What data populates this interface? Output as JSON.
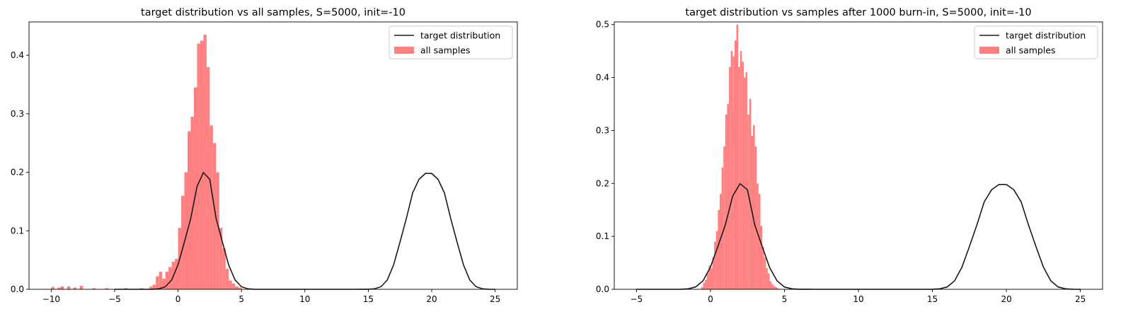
{
  "chart_data": [
    {
      "type": "histogram+line",
      "title": "target distribution vs all samples, S=5000, init=-10",
      "xlabel": "",
      "ylabel": "",
      "xlim": [
        -11.75,
        26.75
      ],
      "ylim": [
        0,
        0.457
      ],
      "xticks": [
        -10,
        -5,
        0,
        5,
        10,
        15,
        20,
        25
      ],
      "yticks": [
        0.0,
        0.1,
        0.2,
        0.3,
        0.4
      ],
      "legend": {
        "position": "top-right",
        "entries": [
          {
            "label": "target distribution",
            "kind": "line",
            "color": "#1a1a1a"
          },
          {
            "label": "all samples",
            "kind": "patch",
            "color": "#ff8080"
          }
        ]
      },
      "series": [
        {
          "name": "target distribution",
          "kind": "line",
          "color": "#1a1a1a",
          "x": [
            -5,
            -4.5,
            -4,
            -3.5,
            -3,
            -2.5,
            -2,
            -1.5,
            -1,
            -0.5,
            0,
            0.5,
            1,
            1.5,
            2,
            2.5,
            3,
            3.5,
            4,
            4.5,
            5,
            5.5,
            6,
            7,
            8,
            10,
            12,
            14,
            15,
            15.5,
            16,
            16.5,
            17,
            17.5,
            18,
            18.5,
            19,
            19.5,
            20,
            20.5,
            21,
            21.5,
            22,
            22.5,
            23,
            23.5,
            24,
            24.5,
            25
          ],
          "y": [
            0,
            0,
            0,
            0,
            0,
            0,
            0.0001,
            0.0009,
            0.0044,
            0.016,
            0.042,
            0.0807,
            0.121,
            0.176,
            0.1995,
            0.188,
            0.121,
            0.0807,
            0.041,
            0.016,
            0.0044,
            0.0009,
            0.0001,
            0,
            0,
            0,
            0,
            0,
            0.0001,
            0.0009,
            0.0044,
            0.016,
            0.042,
            0.0807,
            0.121,
            0.165,
            0.188,
            0.198,
            0.198,
            0.188,
            0.165,
            0.121,
            0.0807,
            0.042,
            0.016,
            0.0044,
            0.0009,
            0.0001,
            0
          ]
        },
        {
          "name": "all samples",
          "kind": "histogram",
          "color": "#ff8080",
          "bin_width": 0.25,
          "bin_starts": [
            -10.0,
            -9.5,
            -9.25,
            -8.75,
            -8.25,
            -7.75,
            -6.75,
            -5.75,
            -4.25,
            -3.0,
            -2.25,
            -2.0,
            -1.75,
            -1.5,
            -1.25,
            -1.0,
            -0.75,
            -0.5,
            -0.25,
            0,
            0.25,
            0.5,
            0.75,
            1.0,
            1.25,
            1.5,
            1.75,
            2.0,
            2.25,
            2.5,
            2.75,
            3.0,
            3.25,
            3.5,
            3.75,
            4.0,
            4.25,
            4.5,
            4.75
          ],
          "values": [
            0.004,
            0.003,
            0.005,
            0.005,
            0.003,
            0.006,
            0.002,
            0.002,
            0.002,
            0.002,
            0.005,
            0.008,
            0.022,
            0.03,
            0.018,
            0.03,
            0.038,
            0.047,
            0.052,
            0.105,
            0.16,
            0.2,
            0.27,
            0.295,
            0.345,
            0.42,
            0.425,
            0.435,
            0.38,
            0.28,
            0.25,
            0.2,
            0.105,
            0.07,
            0.035,
            0.015,
            0.01,
            0.005,
            0.003
          ]
        }
      ]
    },
    {
      "type": "histogram+line",
      "title": "target distribution vs samples after 1000 burn-in, S=5000, init=-10",
      "xlabel": "",
      "ylabel": "",
      "xlim": [
        -6.5,
        26.5
      ],
      "ylim": [
        0,
        0.505
      ],
      "xticks": [
        -5,
        0,
        5,
        10,
        15,
        20,
        25
      ],
      "yticks": [
        0.0,
        0.1,
        0.2,
        0.3,
        0.4,
        0.5
      ],
      "legend": {
        "position": "top-right",
        "entries": [
          {
            "label": "target distribution",
            "kind": "line",
            "color": "#1a1a1a"
          },
          {
            "label": "all samples",
            "kind": "patch",
            "color": "#ff8080"
          }
        ]
      },
      "series": [
        {
          "name": "target distribution",
          "kind": "line",
          "color": "#1a1a1a",
          "x": [
            -5,
            -4.5,
            -4,
            -3.5,
            -3,
            -2.5,
            -2,
            -1.5,
            -1,
            -0.5,
            0,
            0.5,
            1,
            1.5,
            2,
            2.5,
            3,
            3.5,
            4,
            4.5,
            5,
            5.5,
            6,
            7,
            8,
            10,
            12,
            14,
            15,
            15.5,
            16,
            16.5,
            17,
            17.5,
            18,
            18.5,
            19,
            19.5,
            20,
            20.5,
            21,
            21.5,
            22,
            22.5,
            23,
            23.5,
            24,
            24.5,
            25
          ],
          "y": [
            0,
            0,
            0,
            0,
            0,
            0,
            0.0001,
            0.0009,
            0.0044,
            0.016,
            0.042,
            0.0807,
            0.121,
            0.176,
            0.1995,
            0.188,
            0.121,
            0.0807,
            0.041,
            0.016,
            0.0044,
            0.0009,
            0.0001,
            0,
            0,
            0,
            0,
            0,
            0.0001,
            0.0009,
            0.0044,
            0.016,
            0.042,
            0.0807,
            0.121,
            0.165,
            0.188,
            0.198,
            0.198,
            0.188,
            0.165,
            0.121,
            0.0807,
            0.042,
            0.016,
            0.0044,
            0.0009,
            0.0001,
            0
          ]
        },
        {
          "name": "all samples",
          "kind": "histogram",
          "color": "#ff8080",
          "bin_width": 0.125,
          "bin_starts": [
            -0.625,
            -0.5,
            -0.375,
            -0.25,
            -0.125,
            0.0,
            0.125,
            0.25,
            0.375,
            0.5,
            0.625,
            0.75,
            0.875,
            1.0,
            1.125,
            1.25,
            1.375,
            1.5,
            1.625,
            1.75,
            1.875,
            2.0,
            2.125,
            2.25,
            2.375,
            2.5,
            2.625,
            2.75,
            2.875,
            3.0,
            3.125,
            3.25,
            3.375,
            3.5,
            3.625,
            3.75,
            3.875,
            4.0,
            4.125,
            4.25,
            4.375,
            4.5
          ],
          "values": [
            0.004,
            0.012,
            0.018,
            0.03,
            0.045,
            0.04,
            0.06,
            0.09,
            0.11,
            0.15,
            0.18,
            0.23,
            0.27,
            0.33,
            0.35,
            0.42,
            0.45,
            0.44,
            0.47,
            0.5,
            0.42,
            0.45,
            0.43,
            0.4,
            0.41,
            0.33,
            0.36,
            0.29,
            0.31,
            0.27,
            0.2,
            0.18,
            0.12,
            0.08,
            0.06,
            0.04,
            0.03,
            0.015,
            0.01,
            0.006,
            0.004,
            0.002
          ]
        }
      ]
    }
  ]
}
